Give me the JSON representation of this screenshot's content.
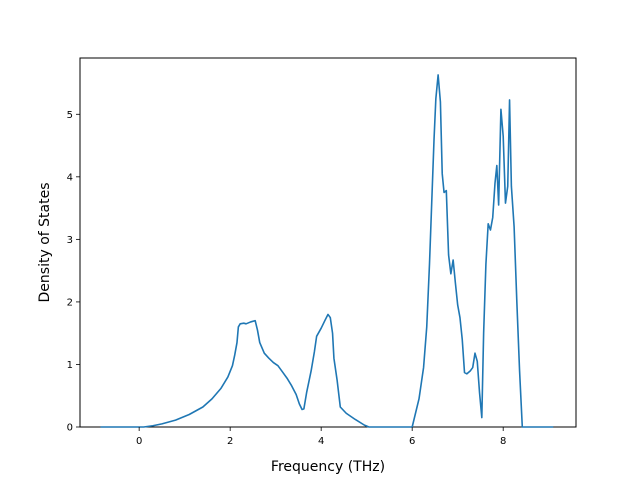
{
  "chart_data": {
    "type": "line",
    "title": "",
    "xlabel": "Frequency (THz)",
    "ylabel": "Density of States",
    "xlim": [
      -1.3,
      9.6
    ],
    "ylim": [
      0,
      5.9
    ],
    "xticks": [
      0,
      2,
      4,
      6,
      8
    ],
    "yticks": [
      0,
      1,
      2,
      3,
      4,
      5
    ],
    "grid": false,
    "legend": "none",
    "series": [
      {
        "color": "#1f77b4",
        "points": [
          [
            -0.85,
            0.0
          ],
          [
            -0.2,
            0.0
          ],
          [
            0.1,
            0.0
          ],
          [
            0.3,
            0.02
          ],
          [
            0.5,
            0.05
          ],
          [
            0.8,
            0.11
          ],
          [
            1.1,
            0.2
          ],
          [
            1.4,
            0.32
          ],
          [
            1.6,
            0.45
          ],
          [
            1.8,
            0.62
          ],
          [
            1.95,
            0.8
          ],
          [
            2.05,
            0.98
          ],
          [
            2.1,
            1.15
          ],
          [
            2.15,
            1.35
          ],
          [
            2.18,
            1.6
          ],
          [
            2.22,
            1.65
          ],
          [
            2.3,
            1.66
          ],
          [
            2.35,
            1.65
          ],
          [
            2.45,
            1.68
          ],
          [
            2.55,
            1.7
          ],
          [
            2.6,
            1.55
          ],
          [
            2.65,
            1.35
          ],
          [
            2.75,
            1.18
          ],
          [
            2.85,
            1.1
          ],
          [
            2.95,
            1.03
          ],
          [
            3.05,
            0.98
          ],
          [
            3.15,
            0.88
          ],
          [
            3.25,
            0.78
          ],
          [
            3.35,
            0.66
          ],
          [
            3.45,
            0.52
          ],
          [
            3.52,
            0.37
          ],
          [
            3.58,
            0.28
          ],
          [
            3.62,
            0.29
          ],
          [
            3.68,
            0.55
          ],
          [
            3.78,
            0.9
          ],
          [
            3.85,
            1.2
          ],
          [
            3.9,
            1.45
          ],
          [
            4.0,
            1.58
          ],
          [
            4.08,
            1.7
          ],
          [
            4.15,
            1.8
          ],
          [
            4.2,
            1.75
          ],
          [
            4.25,
            1.5
          ],
          [
            4.28,
            1.1
          ],
          [
            4.35,
            0.75
          ],
          [
            4.42,
            0.32
          ],
          [
            4.55,
            0.22
          ],
          [
            4.75,
            0.12
          ],
          [
            4.95,
            0.03
          ],
          [
            5.05,
            0.0
          ],
          [
            6.0,
            0.0
          ],
          [
            6.15,
            0.45
          ],
          [
            6.25,
            0.95
          ],
          [
            6.32,
            1.6
          ],
          [
            6.38,
            2.6
          ],
          [
            6.43,
            3.6
          ],
          [
            6.48,
            4.6
          ],
          [
            6.52,
            5.25
          ],
          [
            6.57,
            5.63
          ],
          [
            6.62,
            5.2
          ],
          [
            6.66,
            4.05
          ],
          [
            6.7,
            3.75
          ],
          [
            6.75,
            3.78
          ],
          [
            6.8,
            2.75
          ],
          [
            6.85,
            2.45
          ],
          [
            6.9,
            2.67
          ],
          [
            6.95,
            2.3
          ],
          [
            7.0,
            1.95
          ],
          [
            7.05,
            1.75
          ],
          [
            7.1,
            1.4
          ],
          [
            7.15,
            0.87
          ],
          [
            7.2,
            0.85
          ],
          [
            7.28,
            0.9
          ],
          [
            7.33,
            0.95
          ],
          [
            7.38,
            1.18
          ],
          [
            7.43,
            1.05
          ],
          [
            7.48,
            0.55
          ],
          [
            7.53,
            0.15
          ],
          [
            7.57,
            1.5
          ],
          [
            7.62,
            2.6
          ],
          [
            7.67,
            3.25
          ],
          [
            7.72,
            3.15
          ],
          [
            7.77,
            3.35
          ],
          [
            7.82,
            3.9
          ],
          [
            7.86,
            4.18
          ],
          [
            7.9,
            3.55
          ],
          [
            7.95,
            5.08
          ],
          [
            8.0,
            4.65
          ],
          [
            8.05,
            3.58
          ],
          [
            8.1,
            3.85
          ],
          [
            8.14,
            5.23
          ],
          [
            8.18,
            3.85
          ],
          [
            8.24,
            3.2
          ],
          [
            8.3,
            2.0
          ],
          [
            8.36,
            0.9
          ],
          [
            8.42,
            0.0
          ],
          [
            9.1,
            0.0
          ]
        ]
      }
    ]
  }
}
